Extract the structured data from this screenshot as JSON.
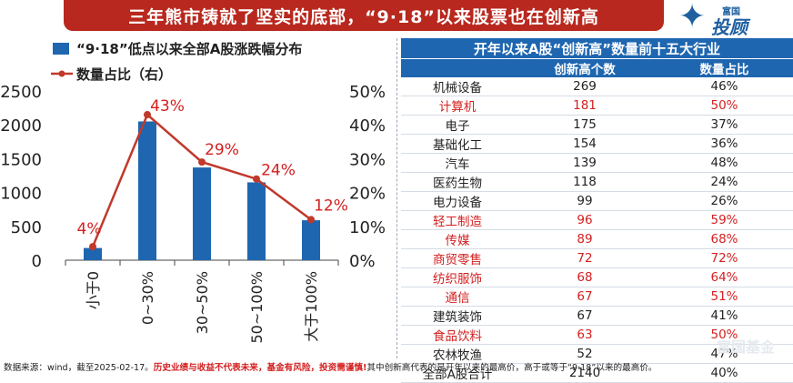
{
  "header": {
    "title": "三年熊市铸就了坚实的底部，“9·18”以来股票也在创新高",
    "logo_small": "富国",
    "logo_big": "投顾",
    "logo_star": "✦"
  },
  "colors": {
    "bar": "#1e66b0",
    "line": "#c0392b",
    "header_bg": "#b8281e",
    "highlight": "#d42020"
  },
  "chart_data": {
    "type": "bar",
    "legend": {
      "bar": "“9·18”低点以来全部A股涨跌幅分布",
      "line": "数量占比（右）"
    },
    "categories": [
      "小于0",
      "0~30%",
      "30~50%",
      "50~100%",
      "大于100%"
    ],
    "series": [
      {
        "name": "“9·18”低点以来全部A股涨跌幅分布",
        "type": "bar",
        "axis": "left",
        "values": [
          180,
          2050,
          1370,
          1150,
          590
        ]
      },
      {
        "name": "数量占比（右）",
        "type": "line",
        "axis": "right",
        "values": [
          4,
          43,
          29,
          24,
          12
        ],
        "labels": [
          "4%",
          "43%",
          "29%",
          "24%",
          "12%"
        ]
      }
    ],
    "ylim_left": [
      0,
      2500
    ],
    "ylim_right": [
      0,
      50
    ],
    "yticks_left": [
      "0",
      "500",
      "1000",
      "1500",
      "2000",
      "2500"
    ],
    "yticks_right": [
      "0%",
      "10%",
      "20%",
      "30%",
      "40%",
      "50%"
    ],
    "grid": false,
    "legend_position": "top-left"
  },
  "table": {
    "title": "开年以来A股“创新高”数量前十五大行业",
    "columns": [
      "",
      "创新高个数",
      "数量占比"
    ],
    "rows": [
      {
        "industry": "机械设备",
        "count": "269",
        "share": "46%",
        "highlight": false
      },
      {
        "industry": "计算机",
        "count": "181",
        "share": "50%",
        "highlight": true
      },
      {
        "industry": "电子",
        "count": "175",
        "share": "37%",
        "highlight": false
      },
      {
        "industry": "基础化工",
        "count": "154",
        "share": "36%",
        "highlight": false
      },
      {
        "industry": "汽车",
        "count": "139",
        "share": "48%",
        "highlight": false
      },
      {
        "industry": "医药生物",
        "count": "118",
        "share": "24%",
        "highlight": false
      },
      {
        "industry": "电力设备",
        "count": "99",
        "share": "26%",
        "highlight": false
      },
      {
        "industry": "轻工制造",
        "count": "96",
        "share": "59%",
        "highlight": true
      },
      {
        "industry": "传媒",
        "count": "89",
        "share": "68%",
        "highlight": true
      },
      {
        "industry": "商贸零售",
        "count": "72",
        "share": "72%",
        "highlight": true
      },
      {
        "industry": "纺织服饰",
        "count": "68",
        "share": "64%",
        "highlight": true
      },
      {
        "industry": "通信",
        "count": "67",
        "share": "51%",
        "highlight": true
      },
      {
        "industry": "建筑装饰",
        "count": "67",
        "share": "41%",
        "highlight": false
      },
      {
        "industry": "食品饮料",
        "count": "63",
        "share": "50%",
        "highlight": true
      },
      {
        "industry": "农林牧渔",
        "count": "52",
        "share": "47%",
        "highlight": false
      },
      {
        "industry": "全部A股合计",
        "count": "2140",
        "share": "40%",
        "highlight": false
      }
    ]
  },
  "footer": {
    "source": "数据来源：wind，截至2025-02-17。",
    "risk": "历史业绩与收益不代表未来，基金有风险，投资需谨慎!",
    "note": "其中创新高代表的是开年以来的最高价，高于或等于“9·18”以来的最高价。"
  },
  "watermark": "富国基金"
}
